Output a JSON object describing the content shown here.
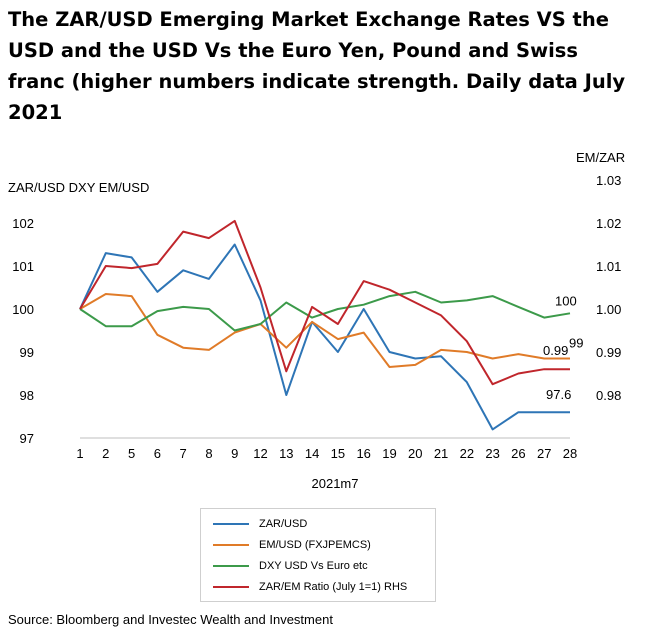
{
  "title": "The ZAR/USD Emerging Market Exchange Rates VS the USD and the USD Vs the Euro Yen, Pound and Swiss franc (higher numbers indicate strength. Daily data July 2021",
  "source": "Source: Bloomberg and Investec Wealth and Investment",
  "chart_data": {
    "type": "line",
    "title": "",
    "xlabel": "2021m7",
    "ylabel_left": "ZAR/USD DXY EM/USD",
    "ylabel_right": "EM/ZAR",
    "categories": [
      "1",
      "2",
      "5",
      "6",
      "7",
      "8",
      "9",
      "12",
      "13",
      "14",
      "15",
      "16",
      "19",
      "20",
      "21",
      "22",
      "23",
      "26",
      "27",
      "28"
    ],
    "ylim_left": [
      97,
      103
    ],
    "yticks_left": [
      "97",
      "98",
      "99",
      "100",
      "101",
      "102"
    ],
    "ylim_right": [
      0.97,
      1.03
    ],
    "yticks_right": [
      "0.98",
      "0.99",
      "1.00",
      "1.01",
      "1.02",
      "1.03"
    ],
    "grid": false,
    "legend_position": "bottom",
    "series": [
      {
        "name": "ZAR/USD",
        "axis": "left",
        "color": "#2e75b6",
        "values": [
          100.0,
          101.3,
          101.2,
          100.4,
          100.9,
          100.7,
          101.5,
          100.2,
          98.0,
          99.7,
          99.0,
          100.0,
          99.0,
          98.85,
          98.9,
          98.3,
          97.2,
          97.6,
          97.6,
          97.6
        ]
      },
      {
        "name": "EM/USD (FXJPEMCS)",
        "axis": "left",
        "color": "#e07b28",
        "values": [
          100.0,
          100.35,
          100.3,
          99.4,
          99.1,
          99.05,
          99.45,
          99.65,
          99.1,
          99.7,
          99.3,
          99.45,
          98.65,
          98.7,
          99.05,
          99.0,
          98.85,
          98.95,
          98.85,
          98.85
        ]
      },
      {
        "name": "DXY USD Vs Euro etc",
        "axis": "left",
        "color": "#3c9a4a",
        "values": [
          100.0,
          99.6,
          99.6,
          99.95,
          100.05,
          100.0,
          99.5,
          99.65,
          100.15,
          99.8,
          100.0,
          100.1,
          100.3,
          100.4,
          100.15,
          100.2,
          100.3,
          100.05,
          99.8,
          99.9
        ]
      },
      {
        "name": "ZAR/EM Ratio (July 1=1) RHS",
        "axis": "right",
        "color": "#c0262c",
        "values": [
          1.0,
          1.01,
          1.0095,
          1.0105,
          1.018,
          1.0165,
          1.0205,
          1.005,
          0.9855,
          1.0005,
          0.9965,
          1.0065,
          1.0045,
          1.0015,
          0.9985,
          0.9925,
          0.9825,
          0.985,
          0.986,
          0.986
        ]
      }
    ],
    "annotations": [
      {
        "text": "0.99",
        "series": "ZAR/EM Ratio (July 1=1) RHS"
      },
      {
        "text": "100",
        "series": "DXY USD Vs Euro etc"
      },
      {
        "text": "99",
        "series": "EM/USD (FXJPEMCS)"
      },
      {
        "text": "97.6",
        "series": "ZAR/USD"
      }
    ]
  }
}
